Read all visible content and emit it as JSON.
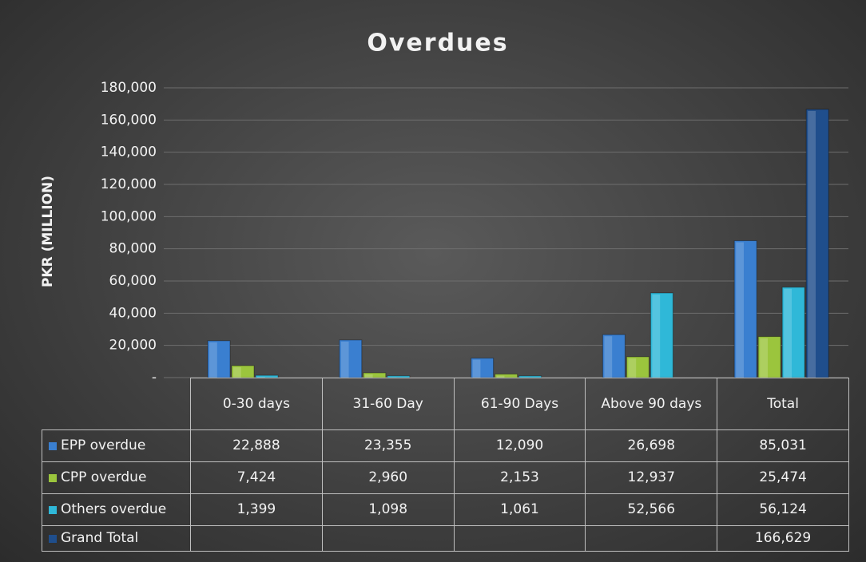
{
  "chart_data": {
    "type": "bar",
    "title": "Overdues",
    "y_label": "PKR (MILLION)",
    "categories": [
      "0-30 days",
      "31-60 Day",
      "61-90 Days",
      "Above 90 days",
      "Total"
    ],
    "series": [
      {
        "name": "EPP overdue",
        "color": "#3a7fd0",
        "values": [
          22888,
          23355,
          12090,
          26698,
          85031
        ],
        "value_labels": [
          "22,888",
          "23,355",
          "12,090",
          "26,698",
          "85,031"
        ]
      },
      {
        "name": "CPP overdue",
        "color": "#9bc53d",
        "values": [
          7424,
          2960,
          2153,
          12937,
          25474
        ],
        "value_labels": [
          "7,424",
          "2,960",
          "2,153",
          "12,937",
          "25,474"
        ]
      },
      {
        "name": "Others overdue",
        "color": "#2fb8d8",
        "values": [
          1399,
          1098,
          1061,
          52566,
          56124
        ],
        "value_labels": [
          "1,399",
          "1,098",
          "1,061",
          "52,566",
          "56,124"
        ]
      },
      {
        "name": "Grand Total",
        "color": "#1f4e8c",
        "values": [
          null,
          null,
          null,
          null,
          166629
        ],
        "value_labels": [
          null,
          null,
          null,
          null,
          "166,629"
        ]
      }
    ],
    "ylim": [
      0,
      180000
    ],
    "yticks": [
      {
        "value": 0,
        "label": "-"
      },
      {
        "value": 20000,
        "label": "20,000"
      },
      {
        "value": 40000,
        "label": "40,000"
      },
      {
        "value": 60000,
        "label": "60,000"
      },
      {
        "value": 80000,
        "label": "80,000"
      },
      {
        "value": 100000,
        "label": "100,000"
      },
      {
        "value": 120000,
        "label": "120,000"
      },
      {
        "value": 140000,
        "label": "140,000"
      },
      {
        "value": 160000,
        "label": "160,000"
      },
      {
        "value": 180000,
        "label": "180,000"
      }
    ],
    "grid": true
  }
}
